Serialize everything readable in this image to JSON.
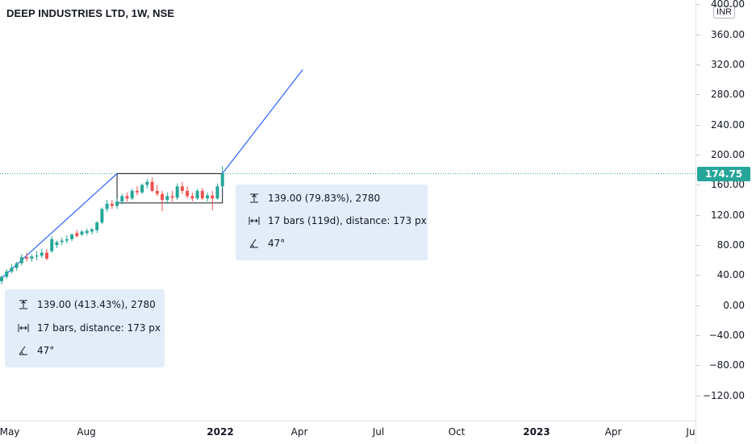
{
  "header": {
    "title": "DEEP INDUSTRIES LTD, 1W, NSE"
  },
  "price_axis": {
    "currency": "INR",
    "ticks": [
      "400.00",
      "360.00",
      "320.00",
      "280.00",
      "240.00",
      "200.00",
      "160.00",
      "120.00",
      "80.00",
      "40.00",
      "0.00",
      "−40.00",
      "−80.00",
      "−120.00"
    ],
    "last_price": "174.75",
    "last_price_color": "#26a69a"
  },
  "time_axis": {
    "labels": [
      "May",
      "Aug",
      "2022",
      "Apr",
      "Jul",
      "Oct",
      "2023",
      "Apr",
      "Ju"
    ]
  },
  "measure_box_right": {
    "icons": [
      "price-range-icon",
      "bar-range-icon",
      "angle-icon"
    ],
    "line1": "139.00 (79.83%), 2780",
    "line2": "17 bars (119d), distance: 173 px",
    "line3": "47°"
  },
  "measure_box_left": {
    "icons": [
      "price-range-icon",
      "bar-range-icon",
      "angle-icon"
    ],
    "line1": "139.00 (413.43%), 2780",
    "line2": "17 bars, distance: 173 px",
    "line3": "47°"
  },
  "colors": {
    "up": "#26a69a",
    "down": "#ef5350",
    "trendline": "#2962ff",
    "accent": "#26a69a"
  },
  "chart_data": {
    "type": "candlestick",
    "title": "DEEP INDUSTRIES LTD, 1W, NSE",
    "interval": "1W",
    "exchange": "NSE",
    "ylim": [
      -140,
      400
    ],
    "last_price": 174.75,
    "candles": [
      {
        "o": 32,
        "h": 40,
        "l": 28,
        "c": 38,
        "up": true
      },
      {
        "o": 38,
        "h": 48,
        "l": 35,
        "c": 45,
        "up": true
      },
      {
        "o": 45,
        "h": 55,
        "l": 42,
        "c": 50,
        "up": true
      },
      {
        "o": 50,
        "h": 58,
        "l": 46,
        "c": 56,
        "up": true
      },
      {
        "o": 56,
        "h": 68,
        "l": 53,
        "c": 64,
        "up": true
      },
      {
        "o": 64,
        "h": 70,
        "l": 58,
        "c": 62,
        "up": false
      },
      {
        "o": 62,
        "h": 68,
        "l": 58,
        "c": 65,
        "up": true
      },
      {
        "o": 65,
        "h": 72,
        "l": 60,
        "c": 66,
        "up": true
      },
      {
        "o": 66,
        "h": 75,
        "l": 63,
        "c": 70,
        "up": true
      },
      {
        "o": 70,
        "h": 75,
        "l": 60,
        "c": 62,
        "up": false
      },
      {
        "o": 72,
        "h": 92,
        "l": 70,
        "c": 88,
        "up": true
      },
      {
        "o": 80,
        "h": 86,
        "l": 76,
        "c": 84,
        "up": true
      },
      {
        "o": 84,
        "h": 90,
        "l": 80,
        "c": 86,
        "up": true
      },
      {
        "o": 86,
        "h": 93,
        "l": 82,
        "c": 88,
        "up": true
      },
      {
        "o": 88,
        "h": 96,
        "l": 85,
        "c": 94,
        "up": true
      },
      {
        "o": 96,
        "h": 100,
        "l": 90,
        "c": 92,
        "up": false
      },
      {
        "o": 94,
        "h": 100,
        "l": 92,
        "c": 98,
        "up": true
      },
      {
        "o": 96,
        "h": 102,
        "l": 93,
        "c": 99,
        "up": true
      },
      {
        "o": 98,
        "h": 103,
        "l": 94,
        "c": 101,
        "up": true
      },
      {
        "o": 100,
        "h": 112,
        "l": 96,
        "c": 110,
        "up": true
      },
      {
        "o": 110,
        "h": 130,
        "l": 108,
        "c": 128,
        "up": true
      },
      {
        "o": 128,
        "h": 140,
        "l": 124,
        "c": 135,
        "up": true
      },
      {
        "o": 135,
        "h": 140,
        "l": 128,
        "c": 132,
        "up": false
      },
      {
        "o": 132,
        "h": 142,
        "l": 128,
        "c": 138,
        "up": true
      },
      {
        "o": 138,
        "h": 148,
        "l": 134,
        "c": 145,
        "up": true
      },
      {
        "o": 145,
        "h": 150,
        "l": 138,
        "c": 142,
        "up": false
      },
      {
        "o": 142,
        "h": 155,
        "l": 140,
        "c": 152,
        "up": true
      },
      {
        "o": 152,
        "h": 158,
        "l": 146,
        "c": 150,
        "up": false
      },
      {
        "o": 150,
        "h": 162,
        "l": 148,
        "c": 160,
        "up": true
      },
      {
        "o": 160,
        "h": 168,
        "l": 155,
        "c": 164,
        "up": true
      },
      {
        "o": 164,
        "h": 170,
        "l": 150,
        "c": 152,
        "up": false
      },
      {
        "o": 152,
        "h": 160,
        "l": 145,
        "c": 148,
        "up": false
      },
      {
        "o": 148,
        "h": 152,
        "l": 125,
        "c": 140,
        "up": false
      },
      {
        "o": 140,
        "h": 150,
        "l": 135,
        "c": 145,
        "up": true
      },
      {
        "o": 145,
        "h": 152,
        "l": 138,
        "c": 143,
        "up": false
      },
      {
        "o": 143,
        "h": 162,
        "l": 140,
        "c": 158,
        "up": true
      },
      {
        "o": 158,
        "h": 164,
        "l": 148,
        "c": 152,
        "up": false
      },
      {
        "o": 152,
        "h": 158,
        "l": 142,
        "c": 145,
        "up": false
      },
      {
        "o": 145,
        "h": 150,
        "l": 138,
        "c": 142,
        "up": false
      },
      {
        "o": 142,
        "h": 155,
        "l": 140,
        "c": 152,
        "up": true
      },
      {
        "o": 152,
        "h": 156,
        "l": 140,
        "c": 142,
        "up": false
      },
      {
        "o": 142,
        "h": 150,
        "l": 138,
        "c": 146,
        "up": true
      },
      {
        "o": 146,
        "h": 152,
        "l": 126,
        "c": 142,
        "up": false
      },
      {
        "o": 142,
        "h": 162,
        "l": 140,
        "c": 158,
        "up": true
      },
      {
        "o": 158,
        "h": 185,
        "l": 155,
        "c": 175,
        "up": true
      }
    ],
    "trendlines": [
      {
        "label": "lower-left",
        "from": {
          "bar": 0,
          "price": 36
        },
        "to": {
          "bar": 23,
          "price": 175
        }
      },
      {
        "label": "upper-right",
        "from": {
          "bar": 44,
          "price": 175
        },
        "to": {
          "bar": 60,
          "price": 313
        }
      }
    ],
    "range_box": {
      "start_bar": 23,
      "end_bar": 44,
      "top": 175,
      "bottom": 136
    },
    "grid": false
  }
}
